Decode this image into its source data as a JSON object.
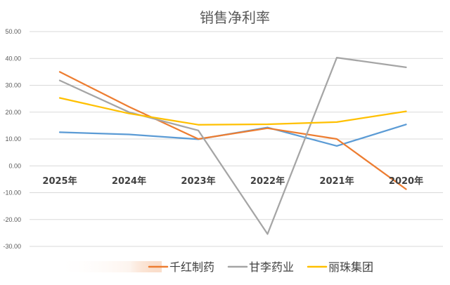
{
  "chart_data": {
    "type": "line",
    "title": "销售净利率",
    "categories": [
      "2025年",
      "2024年",
      "2023年",
      "2022年",
      "2021年",
      "2020年"
    ],
    "ylim": [
      -30,
      50
    ],
    "yticks": [
      "50.00",
      "40.00",
      "30.00",
      "20.00",
      "10.00",
      "0.00",
      "-10.00",
      "-20.00",
      "-30.00"
    ],
    "grid": true,
    "legend_position": "bottom",
    "series": [
      {
        "name": "千红制药",
        "color": "#ED7D31",
        "values": [
          35.0,
          22.0,
          10.0,
          14.0,
          10.0,
          -8.7
        ]
      },
      {
        "name": "甘李药业",
        "color": "#A5A5A5",
        "values": [
          31.8,
          20.0,
          13.2,
          -25.4,
          40.3,
          36.7
        ]
      },
      {
        "name": "丽珠集团",
        "color": "#FFC000",
        "values": [
          25.3,
          19.5,
          15.3,
          15.5,
          16.3,
          20.3
        ]
      }
    ],
    "unlabeled_series": [
      {
        "color": "#5B9BD5",
        "values": [
          12.5,
          11.7,
          9.9,
          14.3,
          7.4,
          15.4
        ]
      }
    ]
  }
}
